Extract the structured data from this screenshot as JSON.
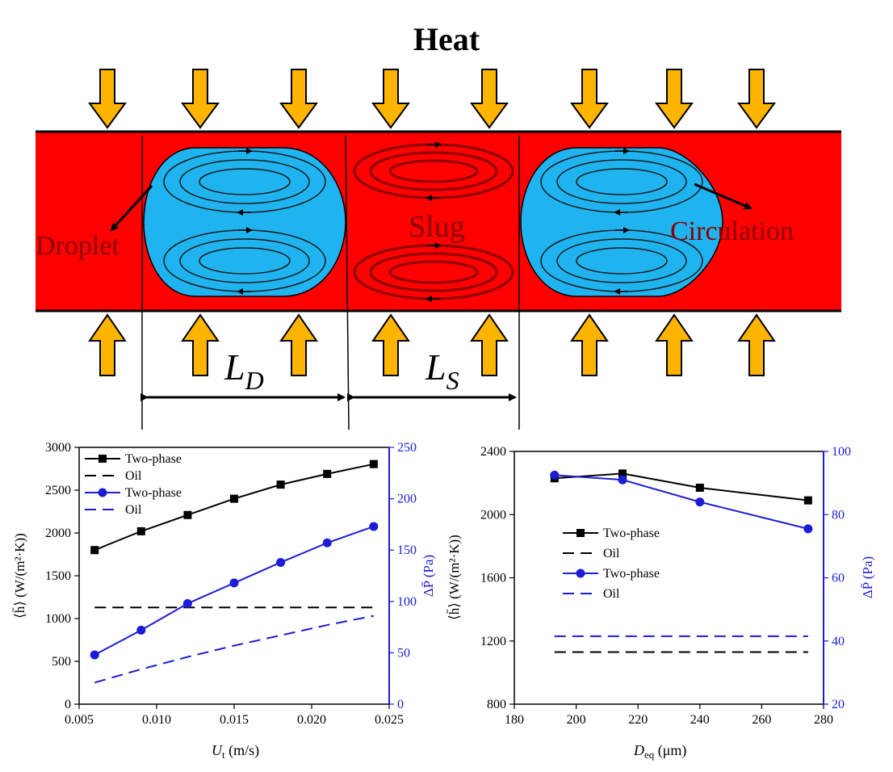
{
  "schematic": {
    "title": "Heat",
    "labels": {
      "droplet": "Droplet",
      "slug": "Slug",
      "circulation": "Circulation"
    },
    "dims": {
      "ld_base": "L",
      "ld_sub": "D",
      "ls_base": "L",
      "ls_sub": "S"
    },
    "colors": {
      "channel": "#ff0000",
      "droplet": "#1fb4f0",
      "arrow": "#ffb400",
      "vortex": "#1a1a1a",
      "slug_vortex": "#8b0000"
    }
  },
  "chart_data": [
    {
      "type": "line",
      "x": [
        0.006,
        0.009,
        0.012,
        0.015,
        0.018,
        0.021,
        0.024
      ],
      "xlabel_base": "U",
      "xlabel_sub": "t",
      "xlabel_unit": " (m/s)",
      "ylabel_left": "⟨h̄⟩ (W/(m²·K))",
      "ylabel_right": "ΔP̄ (Pa)",
      "xlim": [
        0.005,
        0.025
      ],
      "ylim_left": [
        0,
        3000
      ],
      "ylim_right": [
        0,
        250
      ],
      "xticks": [
        "0.005",
        "0.010",
        "0.015",
        "0.020",
        "0.025"
      ],
      "yticks_left": [
        "0",
        "500",
        "1000",
        "1500",
        "2000",
        "2500",
        "3000"
      ],
      "yticks_right": [
        "0",
        "50",
        "100",
        "150",
        "200",
        "250"
      ],
      "legend": [
        "Two-phase",
        "Oil",
        "Two-phase",
        "Oil"
      ],
      "series": [
        {
          "name": "Two-phase",
          "axis": "left",
          "style": "solid-square",
          "color": "#000000",
          "values": [
            1800,
            2020,
            2210,
            2400,
            2565,
            2690,
            2805
          ]
        },
        {
          "name": "Oil",
          "axis": "left",
          "style": "dash",
          "color": "#000000",
          "values": [
            1130,
            1130,
            1130,
            1130,
            1130,
            1130,
            1130
          ]
        },
        {
          "name": "Two-phase",
          "axis": "right",
          "style": "solid-circle",
          "color": "#1c1cd6",
          "values": [
            48,
            72,
            98,
            118,
            138,
            157,
            173
          ]
        },
        {
          "name": "Oil",
          "axis": "right",
          "style": "dash",
          "color": "#1c1cd6",
          "values": [
            21,
            34,
            46,
            57,
            67,
            77,
            86
          ]
        }
      ]
    },
    {
      "type": "line",
      "x": [
        193,
        215,
        240,
        275
      ],
      "xlabel_base": "D",
      "xlabel_sub": "eq",
      "xlabel_unit": " (μm)",
      "ylabel_left": "⟨h̄⟩ (W/(m²·K))",
      "ylabel_right": "ΔP̄ (Pa)",
      "xlim": [
        180,
        280
      ],
      "ylim_left": [
        800,
        2400
      ],
      "ylim_right": [
        20,
        100
      ],
      "xticks": [
        "180",
        "200",
        "220",
        "240",
        "260",
        "280"
      ],
      "yticks_left": [
        "800",
        "1200",
        "1600",
        "2000",
        "2400"
      ],
      "yticks_right": [
        "20",
        "40",
        "60",
        "80",
        "100"
      ],
      "legend": [
        "Two-phase",
        "Oil",
        "Two-phase",
        "Oil"
      ],
      "series": [
        {
          "name": "Two-phase",
          "axis": "left",
          "style": "solid-square",
          "color": "#000000",
          "values": [
            2230,
            2260,
            2170,
            2090
          ]
        },
        {
          "name": "Oil",
          "axis": "left",
          "style": "dash",
          "color": "#000000",
          "values": [
            1130,
            1130,
            1130,
            1130
          ]
        },
        {
          "name": "Two-phase",
          "axis": "right",
          "style": "solid-circle",
          "color": "#1c1cd6",
          "values": [
            92.5,
            91,
            84,
            75.5
          ]
        },
        {
          "name": "Oil",
          "axis": "right",
          "style": "dash",
          "color": "#1c1cd6",
          "values": [
            41.5,
            41.5,
            41.5,
            41.5
          ]
        }
      ]
    }
  ]
}
